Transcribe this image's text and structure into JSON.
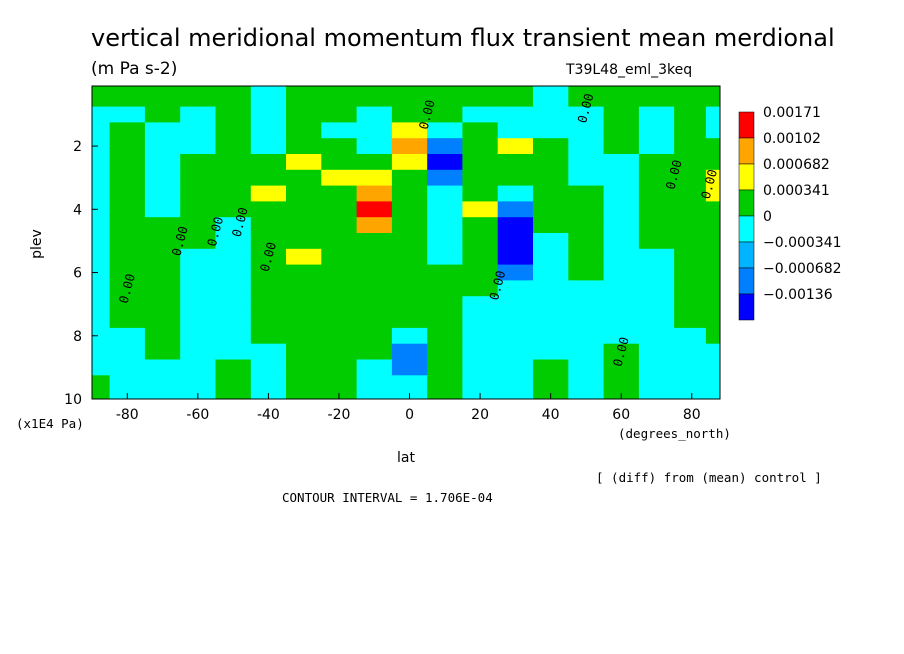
{
  "chart_data": {
    "type": "heatmap",
    "title": "vertical meridional momentum flux transient mean merdional",
    "units": "(m Pa s-2)",
    "experiment": "T39L48_eml_3keq",
    "xlabel": "lat",
    "x_units": "(degrees_north)",
    "ylabel": "plev",
    "y_units": "(x1E4 Pa)",
    "footer_right": "[ (diff) from (mean) control ]",
    "contour_interval": "CONTOUR INTERVAL = 1.706E-04",
    "contour_label": "0.00",
    "xlim": [
      -90,
      88
    ],
    "ylim": [
      0.1,
      10
    ],
    "y_inverted": true,
    "x_ticks": [
      "-80",
      "-60",
      "-40",
      "-20",
      "0",
      "20",
      "40",
      "60",
      "80"
    ],
    "x_tick_values": [
      -80,
      -60,
      -40,
      -20,
      0,
      20,
      40,
      60,
      80
    ],
    "y_ticks": [
      "2",
      "4",
      "6",
      "8",
      "10"
    ],
    "y_tick_values": [
      2,
      4,
      6,
      8,
      10
    ],
    "legend": {
      "placement": "right",
      "levels": [
        "0.00171",
        "0.00102",
        "0.000682",
        "0.000341",
        "0",
        "−0.000341",
        "−0.000682",
        "−0.00136"
      ],
      "colors": [
        "#ff0000",
        "#ffa500",
        "#ffff00",
        "#00cc00",
        "#00ffff",
        "#00b4ff",
        "#0080ff",
        "#0000ff"
      ]
    },
    "x": [
      -90,
      -80,
      -70,
      -60,
      -50,
      -40,
      -30,
      -20,
      -10,
      0,
      10,
      20,
      30,
      40,
      50,
      60,
      70,
      80,
      88
    ],
    "y": [
      0.5,
      1,
      1.5,
      2,
      2.5,
      3,
      3.5,
      4,
      4.5,
      5,
      5.5,
      6,
      6.5,
      7,
      7.5,
      8,
      8.5,
      9,
      9.5,
      10
    ],
    "values": [
      [
        0,
        0,
        0,
        0,
        0,
        -0.0002,
        0,
        0,
        0,
        0,
        0,
        0,
        0,
        -0.0002,
        0,
        0,
        0,
        0,
        0
      ],
      [
        -0.0002,
        -0.0002,
        0,
        -0.0002,
        0,
        -0.0002,
        0,
        0,
        -0.0002,
        0.0001,
        0,
        -0.0002,
        -0.0002,
        -0.0002,
        -0.0002,
        0,
        -0.0002,
        0,
        -0.0002
      ],
      [
        -0.0002,
        0.0001,
        -0.0002,
        -0.0002,
        0.0001,
        -0.0002,
        0.0001,
        -0.0002,
        -0.0002,
        0.0004,
        -0.0002,
        0.0001,
        -0.0002,
        -0.0002,
        -0.0002,
        0.0001,
        -0.0002,
        0.0001,
        -0.0002
      ],
      [
        -0.0002,
        0.0001,
        -0.0002,
        -0.0002,
        0.0001,
        -0.0002,
        0.0001,
        0.0001,
        -0.0002,
        0.0007,
        -0.0004,
        0.0001,
        0.0004,
        0.0001,
        -0.0002,
        0.0001,
        -0.0002,
        0.0001,
        0.0001
      ],
      [
        -0.0002,
        0.0001,
        -0.0002,
        0.0001,
        0.0001,
        0.0001,
        0.0005,
        0.0001,
        0.0001,
        0.0004,
        -0.0007,
        0.0001,
        0.0001,
        0.0001,
        -0.0002,
        -0.0002,
        0.0001,
        0.0001,
        0.0001
      ],
      [
        -0.0002,
        0.0001,
        -0.0002,
        0.0001,
        0.0001,
        0.0001,
        0.0001,
        0.0004,
        0.0005,
        0.0003,
        -0.0005,
        0.0001,
        0.0001,
        0.0001,
        -0.0002,
        -0.0002,
        0.0001,
        0.0001,
        0.0004
      ],
      [
        -0.0002,
        0.0001,
        -0.0002,
        0.0001,
        0.0001,
        0.0004,
        0.0001,
        0.0001,
        0.0011,
        0.0001,
        -0.0002,
        0.0001,
        -0.0002,
        0.0001,
        0.0001,
        -0.0002,
        0.0001,
        0.0001,
        0.0004
      ],
      [
        -0.0002,
        0.0001,
        -0.0002,
        0.0001,
        0.0001,
        0.0001,
        0.0001,
        0.0001,
        0.0018,
        0.0001,
        -0.0002,
        0.0004,
        -0.0005,
        0.0001,
        0.0001,
        -0.0002,
        0.0001,
        0.0001,
        0.0001
      ],
      [
        -0.0002,
        0.0001,
        0.0001,
        0.0001,
        -0.0002,
        0.0001,
        0.0001,
        0.0001,
        0.0008,
        0.0001,
        -0.0002,
        0.0001,
        -0.0007,
        0.0001,
        0.0001,
        -0.0002,
        0.0001,
        0.0001,
        0.0001
      ],
      [
        -0.0002,
        0.0001,
        0.0001,
        0.0001,
        -0.0002,
        0.0001,
        0.0001,
        0.0001,
        0.0001,
        0.0001,
        -0.0002,
        0.0001,
        -0.0007,
        -0.0002,
        0.0001,
        -0.0002,
        0.0001,
        0.0001,
        0.0001
      ],
      [
        -0.0002,
        0.0001,
        0.0001,
        -0.0002,
        -0.0002,
        0.0001,
        0.0004,
        0.0001,
        0.0001,
        0.0001,
        -0.0002,
        0.0001,
        -0.0007,
        -0.0002,
        0.0001,
        -0.0002,
        -0.0002,
        0.0001,
        0.0001
      ],
      [
        -0.0002,
        0.0001,
        0.0001,
        -0.0002,
        -0.0002,
        0.0001,
        0.0001,
        0.0001,
        0.0001,
        0.0001,
        0.0001,
        0.0001,
        -0.0005,
        -0.0002,
        0.0001,
        -0.0002,
        -0.0002,
        0.0001,
        0.0001
      ],
      [
        -0.0002,
        0.0001,
        0.0001,
        -0.0002,
        -0.0002,
        0.0001,
        0.0001,
        0.0001,
        0.0001,
        0.0001,
        0.0001,
        0.0001,
        -0.0002,
        -0.0002,
        -0.0002,
        -0.0002,
        -0.0002,
        0.0001,
        0.0001
      ],
      [
        -0.0002,
        0.0001,
        0.0001,
        -0.0002,
        -0.0002,
        0.0001,
        0.0001,
        0.0001,
        0.0001,
        0.0001,
        0.0001,
        -0.0002,
        -0.0002,
        -0.0002,
        -0.0002,
        -0.0002,
        -0.0002,
        0.0001,
        0.0001
      ],
      [
        -0.0002,
        0.0001,
        0.0001,
        -0.0002,
        -0.0002,
        0.0001,
        0.0001,
        0.0001,
        0.0001,
        0.0001,
        0.0001,
        -0.0002,
        -0.0002,
        -0.0002,
        -0.0002,
        -0.0002,
        -0.0002,
        0.0001,
        0.0001
      ],
      [
        -0.0002,
        -0.0002,
        0.0001,
        -0.0002,
        -0.0002,
        0.0001,
        0.0001,
        0.0001,
        0.0001,
        -0.0002,
        0.0001,
        -0.0002,
        -0.0002,
        -0.0002,
        -0.0002,
        -0.0002,
        -0.0002,
        -0.0002,
        0.0001
      ],
      [
        -0.0002,
        -0.0002,
        0.0001,
        -0.0002,
        -0.0002,
        -0.0002,
        0.0001,
        0.0001,
        0.0001,
        -0.0005,
        0.0001,
        -0.0002,
        -0.0002,
        -0.0002,
        -0.0002,
        0.0001,
        -0.0002,
        -0.0002,
        -0.0002
      ],
      [
        -0.0002,
        -0.0002,
        -0.0002,
        -0.0002,
        0.0001,
        -0.0002,
        0.0001,
        0.0001,
        -0.0002,
        -0.0005,
        0.0001,
        -0.0002,
        -0.0002,
        0.0001,
        -0.0002,
        0.0001,
        -0.0002,
        -0.0002,
        -0.0002
      ],
      [
        0.0001,
        -0.0002,
        -0.0002,
        -0.0002,
        0.0001,
        -0.0002,
        0.0001,
        0.0001,
        -0.0002,
        -0.0002,
        0.0001,
        -0.0002,
        -0.0002,
        0.0001,
        -0.0002,
        0.0001,
        -0.0002,
        -0.0002,
        -0.0002
      ],
      [
        0.0001,
        -0.0002,
        -0.0002,
        -0.0002,
        0.0001,
        -0.0002,
        0.0001,
        0.0001,
        -0.0002,
        -0.0002,
        0.0001,
        -0.0002,
        -0.0002,
        0.0001,
        -0.0002,
        0.0001,
        -0.0002,
        -0.0002,
        -0.0002
      ]
    ]
  }
}
